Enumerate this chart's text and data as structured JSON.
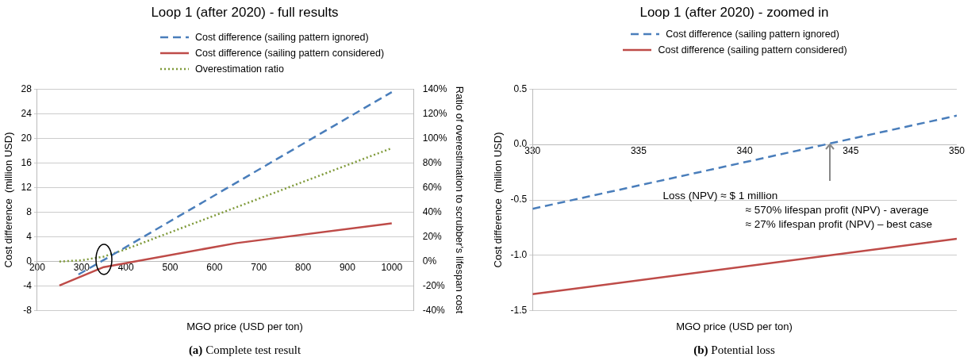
{
  "chart_data": [
    {
      "type": "line",
      "title": "Loop 1 (after 2020) - full results",
      "xlabel": "MGO price (USD per ton)",
      "ylabel": "Cost difference  (million USD)",
      "y2label": "Ratio of overestimation to scrubber's lifespan cost",
      "xlim": [
        200,
        1050
      ],
      "xticks": [
        200,
        300,
        400,
        500,
        600,
        700,
        800,
        900,
        1000
      ],
      "ylim": [
        -8,
        28
      ],
      "yticks": [
        -8,
        -4,
        0,
        4,
        8,
        12,
        16,
        20,
        24,
        28
      ],
      "y2lim": [
        -40,
        140
      ],
      "y2ticks": [
        {
          "value": -40,
          "label": "-40%"
        },
        {
          "value": -20,
          "label": "-20%"
        },
        {
          "value": 0,
          "label": "0%"
        },
        {
          "value": 20,
          "label": "20%"
        },
        {
          "value": 40,
          "label": "40%"
        },
        {
          "value": 60,
          "label": "60%"
        },
        {
          "value": 80,
          "label": "80%"
        },
        {
          "value": 100,
          "label": "100%"
        },
        {
          "value": 120,
          "label": "120%"
        },
        {
          "value": 140,
          "label": "140%"
        }
      ],
      "grid": "y",
      "legend": "top",
      "series": [
        {
          "name": "Cost difference (sailing pattern ignored)",
          "color": "#4a7ebb",
          "line_style": "dashed",
          "x": [
            293,
            344,
            1000
          ],
          "values": [
            -2.1,
            0,
            27.5
          ]
        },
        {
          "name": "Cost difference (sailing pattern considered)",
          "color": "#be4b48",
          "line_style": "solid",
          "x": [
            250,
            350,
            650,
            1000
          ],
          "values": [
            -3.9,
            -0.9,
            3.0,
            6.2
          ]
        },
        {
          "name": "Overestimation ratio",
          "color": "#7f9a3a",
          "line_style": "dotted",
          "axis": "y2",
          "x": [
            250,
            300,
            350,
            400,
            700,
            1000
          ],
          "values": [
            0,
            1,
            4,
            10,
            51,
            92
          ]
        }
      ],
      "annotations": [
        "(a) Complete test result"
      ]
    },
    {
      "type": "line",
      "title": "Loop 1 (after 2020) - zoomed in",
      "xlabel": "MGO price (USD per ton)",
      "ylabel": "Cost difference  (million USD)",
      "xlim": [
        330,
        350
      ],
      "xticks": [
        330,
        335,
        340,
        345,
        350
      ],
      "ylim": [
        -1.5,
        0.5
      ],
      "yticks": [
        {
          "value": -1.5,
          "label": "-1.5"
        },
        {
          "value": -1,
          "label": "-1.0"
        },
        {
          "value": -0.5,
          "label": "-0.5"
        },
        {
          "value": 0,
          "label": "0.0"
        },
        {
          "value": 0.5,
          "label": "0.5"
        }
      ],
      "grid": "y",
      "legend": "top",
      "series": [
        {
          "name": "Cost difference (sailing pattern ignored)",
          "color": "#4a7ebb",
          "line_style": "dashed",
          "x": [
            330,
            350
          ],
          "values": [
            -0.58,
            0.26
          ]
        },
        {
          "name": "Cost difference (sailing pattern considered)",
          "color": "#be4b48",
          "line_style": "solid",
          "x": [
            330,
            350
          ],
          "values": [
            -1.35,
            -0.85
          ]
        }
      ],
      "annotations": [
        "Loss (NPV) ≈ $ 1 million\n≈ 570% lifespan profit (NPV) - average\n≈ 27% lifespan profit (NPV) – best case",
        "(b) Potential loss"
      ]
    }
  ]
}
